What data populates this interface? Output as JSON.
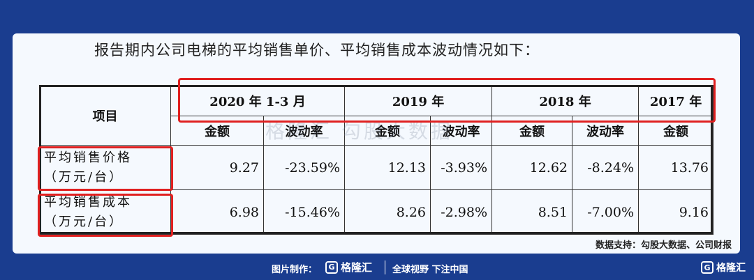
{
  "intro_text": "报告期内公司电梯的平均销售单价、平均销售成本波动情况如下：",
  "table": {
    "item_header": "项目",
    "periods": [
      "2020 年 1-3 月",
      "2019 年",
      "2018 年",
      "2017 年"
    ],
    "subheaders": [
      "金额",
      "波动率",
      "金额",
      "波动率",
      "金额",
      "波动率",
      "金额"
    ],
    "rows": [
      {
        "label_line1": "平均销售价格",
        "label_line2": "（万元/台）",
        "values": [
          "9.27",
          "-23.59%",
          "12.13",
          "-3.93%",
          "12.62",
          "-8.24%",
          "13.76"
        ]
      },
      {
        "label_line1": "平均销售成本",
        "label_line2": "（万元/台）",
        "values": [
          "6.98",
          "-15.46%",
          "8.26",
          "-2.98%",
          "8.51",
          "-7.00%",
          "9.16"
        ]
      }
    ]
  },
  "watermark": "格隆汇 勾股大数据",
  "source_note": "数据支持：勾股大数据、公司财报",
  "footer": {
    "made_by": "图片制作：",
    "brand": "格隆汇",
    "slogan": "全球视野 下注中国",
    "corner_brand": "格隆汇"
  },
  "colors": {
    "background": "#1a3d8f",
    "highlight": "#e02020",
    "card": "#f5f9fe"
  }
}
